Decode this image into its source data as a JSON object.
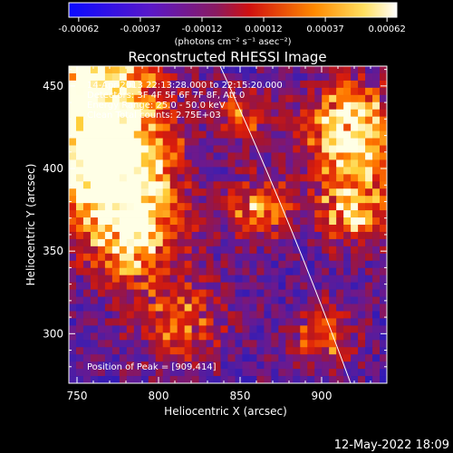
{
  "colorbar": {
    "ticks": [
      "-0.00062",
      "-0.00037",
      "-0.00012",
      "0.00012",
      "0.00037",
      "0.00062"
    ],
    "units": "(photons cm⁻² s⁻¹ asec⁻²)",
    "colormap": "blue-purple-red-orange-yellow-white"
  },
  "chart_data": {
    "type": "heatmap",
    "title": "Reconstructed RHESSI Image",
    "xlabel": "Heliocentric X (arcsec)",
    "ylabel": "Heliocentric Y (arcsec)",
    "xlim": [
      745,
      940
    ],
    "ylim": [
      270,
      462
    ],
    "xticks": [
      750,
      800,
      850,
      900
    ],
    "yticks": [
      300,
      350,
      400,
      450
    ],
    "annotations": [
      "14-Apr-2013 22:13:28.000 to 22:15:20.000",
      "Detectors: 3F 4F 5F 6F 7F 8F, Att 0",
      "Energy Range: 25.0 - 50.0 keV",
      "Clean    Total counts: 2.75E+03"
    ],
    "peak_label": "Position of Peak = [909,414]",
    "peak": [
      909,
      414
    ]
  },
  "footer": {
    "timestamp": "12-May-2022 18:09"
  }
}
